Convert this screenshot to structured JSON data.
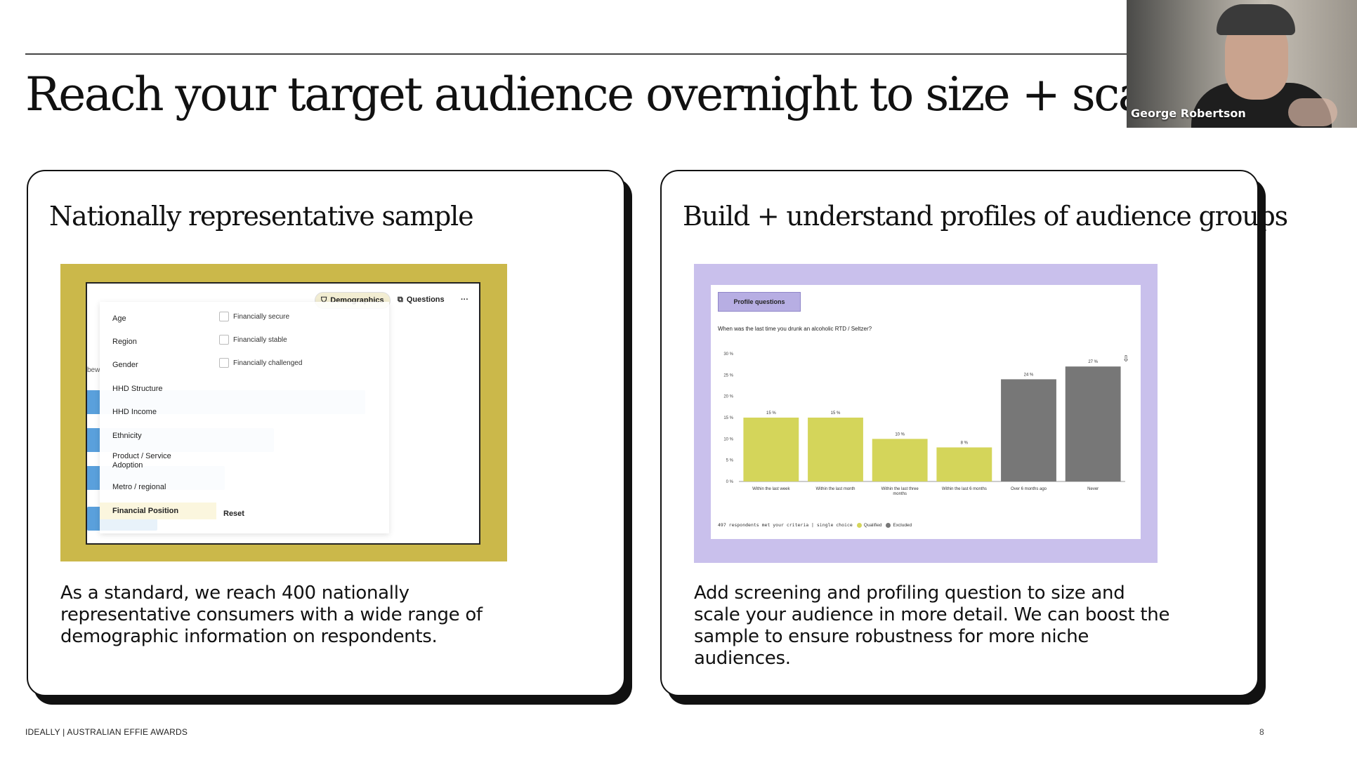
{
  "slide": {
    "title": "Reach your target audience overnight to size + scale",
    "footer_left": "IDEALLY | AUSTRALIAN EFFIE AWARDS",
    "page_number": "8"
  },
  "webcam": {
    "participant_name": "George Robertson"
  },
  "left_card": {
    "heading": "Nationally representative sample",
    "body": "As a standard, we reach 400 nationally representative consumers with a wide range of demographic information on respondents.",
    "ui": {
      "tab_demographics": "Demographics",
      "tab_questions": "Questions",
      "more": "···",
      "menu_items": [
        "Age",
        "Region",
        "Gender",
        "HHD Structure",
        "HHD Income",
        "Ethnicity",
        "Product / Service Adoption",
        "Metro / regional",
        "Financial Position"
      ],
      "active_item": "Financial Position",
      "options": [
        "Financially secure",
        "Financially stable",
        "Financially challenged"
      ],
      "reset_label": "Reset",
      "stray_text": "bew"
    }
  },
  "right_card": {
    "heading": "Build + understand profiles of audience groups",
    "body": "Add screening and profiling question to size and scale your audience in more detail. We can boost the sample to ensure robustness for more niche audiences.",
    "ui": {
      "tab_label": "Profile questions",
      "question": "When was the last time you drunk an alcoholic RTD / Seltzer?",
      "legend_note": "497 respondents met your criteria | single choice",
      "legend_qualified": "Qualified",
      "legend_excluded": "Excluded"
    }
  },
  "chart_data": {
    "type": "bar",
    "title": "",
    "xlabel": "",
    "ylabel": "",
    "categories": [
      "Within the last week",
      "Within the last month",
      "Within the last three months",
      "Within the last 6 months",
      "Over 6 months ago",
      "Never"
    ],
    "values": [
      15,
      15,
      10,
      8,
      24,
      27
    ],
    "value_labels": [
      "15 %",
      "15 %",
      "10 %",
      "8 %",
      "24 %",
      "27 %"
    ],
    "statuses": [
      "qualified",
      "qualified",
      "qualified",
      "qualified",
      "excluded",
      "excluded"
    ],
    "yticks": [
      0,
      5,
      10,
      15,
      20,
      25,
      30
    ],
    "ytick_labels": [
      "0 %",
      "5 %",
      "10 %",
      "15 %",
      "20 %",
      "25 %",
      "30 %"
    ],
    "ylim": [
      0,
      30
    ],
    "grid": false,
    "legend_position": "bottom-left",
    "colors": {
      "qualified": "#d4d55a",
      "excluded": "#777777"
    }
  }
}
